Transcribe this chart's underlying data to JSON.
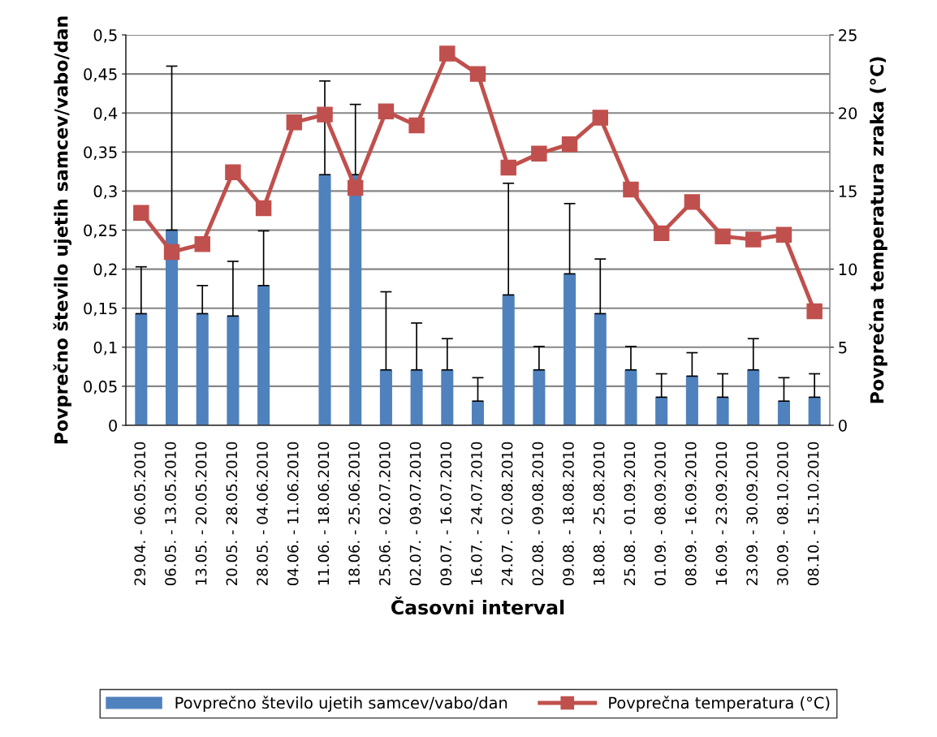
{
  "chart_data": {
    "type": "bar",
    "xlabel": "Časovni interval",
    "ylabel": "Povprečno število ujetih samcev/vabo/dan",
    "y2label": "Povprečna temperatura zraka (°C)",
    "categories": [
      "29.04. - 06.05.2010",
      "06.05. - 13.05.2010",
      "13.05. - 20.05.2010",
      "20.05. - 28.05.2010",
      "28.05. - 04.06.2010",
      "04.06. - 11.06.2010",
      "11.06. - 18.06.2010",
      "18.06. - 25.06.2010",
      "25.06. - 02.07.2010",
      "02.07. - 09.07.2010",
      "09.07. - 16.07.2010",
      "16.07. - 24.07.2010",
      "24.07. - 02.08.2010",
      "02.08. - 09.08.2010",
      "09.08. - 18.08.2010",
      "18.08. - 25.08.2010",
      "25.08. - 01.09.2010",
      "01.09. - 08.09.2010",
      "08.09. - 16.09.2010",
      "16.09. - 23.09.2010",
      "23.09. - 30.09.2010",
      "30.09. - 08.10.2010",
      "08.10. - 15.10.2010"
    ],
    "series": [
      {
        "name": "Povprečno število ujetih samcev/vabo/dan",
        "color": "#4f81bd",
        "values": [
          0.143,
          0.25,
          0.143,
          0.14,
          0.179,
          0,
          0.321,
          0.321,
          0.071,
          0.071,
          0.071,
          0.031,
          0.167,
          0.071,
          0.194,
          0.143,
          0.071,
          0.036,
          0.063,
          0.036,
          0.071,
          0.031,
          0.036
        ],
        "errors": [
          [
            0.143,
            0.203
          ],
          [
            0.25,
            0.46
          ],
          [
            0.143,
            0.179
          ],
          [
            0.14,
            0.21
          ],
          [
            0.179,
            0.249
          ],
          null,
          [
            0.321,
            0.441
          ],
          [
            0.321,
            0.411
          ],
          [
            0.071,
            0.171
          ],
          [
            0.071,
            0.131
          ],
          [
            0.071,
            0.111
          ],
          [
            0.031,
            0.061
          ],
          [
            0.167,
            0.31
          ],
          [
            0.071,
            0.101
          ],
          [
            0.194,
            0.284
          ],
          [
            0.143,
            0.213
          ],
          [
            0.071,
            0.101
          ],
          [
            0.036,
            0.066
          ],
          [
            0.063,
            0.093
          ],
          [
            0.036,
            0.066
          ],
          [
            0.071,
            0.111
          ],
          [
            0.031,
            0.061
          ],
          [
            0.036,
            0.066
          ]
        ]
      },
      {
        "name": "Povprečna temperatura (°C)",
        "type": "line",
        "axis": "y2",
        "color": "#c0504d",
        "marker": "square",
        "values": [
          13.6,
          11.1,
          11.6,
          16.2,
          13.9,
          19.4,
          19.9,
          15.2,
          20.1,
          19.2,
          23.8,
          22.5,
          16.5,
          17.4,
          18.0,
          19.7,
          15.1,
          12.3,
          14.3,
          12.1,
          11.9,
          12.2,
          7.3
        ]
      }
    ],
    "ylim": [
      0,
      0.5
    ],
    "yticks": [
      0,
      {
        "value": 0.05,
        "label": "0,05"
      },
      {
        "value": 0.1,
        "label": "0,1"
      },
      {
        "value": 0.15,
        "label": "0,15"
      },
      {
        "value": 0.2,
        "label": "0,2"
      },
      {
        "value": 0.25,
        "label": "0,25"
      },
      {
        "value": 0.3,
        "label": "0,3"
      },
      {
        "value": 0.35,
        "label": "0,35"
      },
      {
        "value": 0.4,
        "label": "0,4"
      },
      {
        "value": 0.45,
        "label": "0,45"
      },
      {
        "value": 0.5,
        "label": "0,5"
      }
    ],
    "y2lim": [
      0,
      25
    ],
    "y2ticks": [
      0,
      5,
      10,
      15,
      20,
      25
    ],
    "grid": "y",
    "legend": "bottom"
  }
}
